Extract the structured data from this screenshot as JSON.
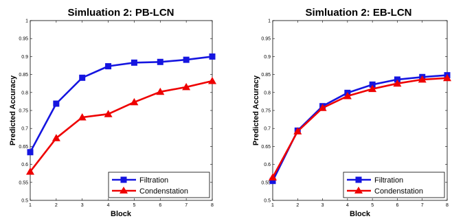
{
  "chart_data": [
    {
      "type": "line",
      "title": "Simluation 2: PB-LCN",
      "xlabel": "Block",
      "ylabel": "Predicted Accuracy",
      "x": [
        1,
        2,
        3,
        4,
        5,
        6,
        7,
        8
      ],
      "xlim": [
        1,
        8
      ],
      "ylim": [
        0.5,
        1
      ],
      "yticks": [
        "0.5",
        "0.55",
        "0.6",
        "0.65",
        "0.7",
        "0.75",
        "0.8",
        "0.85",
        "0.9",
        "0.95",
        "1"
      ],
      "xticks": [
        "1",
        "2",
        "3",
        "4",
        "5",
        "6",
        "7",
        "8"
      ],
      "grid": false,
      "legend_position": "bottom-right",
      "series": [
        {
          "name": "Filtration",
          "color": "#1515e0",
          "marker": "square",
          "values": [
            0.634,
            0.769,
            0.841,
            0.873,
            0.883,
            0.885,
            0.891,
            0.9
          ]
        },
        {
          "name": "Condenstation",
          "color": "#ee0000",
          "marker": "triangle",
          "values": [
            0.58,
            0.673,
            0.731,
            0.74,
            0.773,
            0.802,
            0.815,
            0.832
          ]
        }
      ]
    },
    {
      "type": "line",
      "title": "Simluation 2: EB-LCN",
      "xlabel": "Block",
      "ylabel": "Predicted Accuracy",
      "x": [
        1,
        2,
        3,
        4,
        5,
        6,
        7,
        8
      ],
      "xlim": [
        1,
        8
      ],
      "ylim": [
        0.5,
        1
      ],
      "yticks": [
        "0.5",
        "0.55",
        "0.6",
        "0.65",
        "0.7",
        "0.75",
        "0.8",
        "0.85",
        "0.9",
        "0.95",
        "1"
      ],
      "xticks": [
        "1",
        "2",
        "3",
        "4",
        "5",
        "6",
        "7",
        "8"
      ],
      "grid": false,
      "legend_position": "bottom-right",
      "series": [
        {
          "name": "Filtration",
          "color": "#1515e0",
          "marker": "square",
          "values": [
            0.554,
            0.694,
            0.762,
            0.799,
            0.822,
            0.836,
            0.843,
            0.848
          ]
        },
        {
          "name": "Condenstation",
          "color": "#ee0000",
          "marker": "triangle",
          "values": [
            0.564,
            0.692,
            0.757,
            0.79,
            0.81,
            0.825,
            0.836,
            0.84
          ]
        }
      ]
    }
  ]
}
